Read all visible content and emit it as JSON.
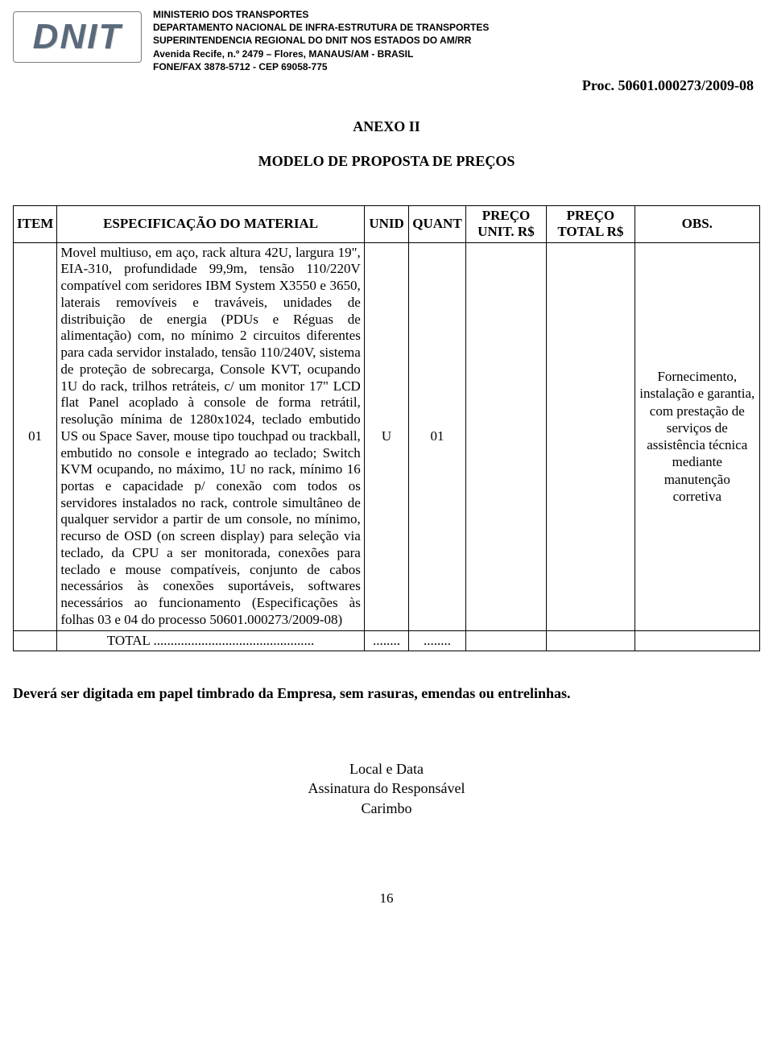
{
  "logo": {
    "text": "DNIT"
  },
  "letterhead": {
    "line1": "MINISTERIO DOS TRANSPORTES",
    "line2": "DEPARTAMENTO NACIONAL DE INFRA-ESTRUTURA DE TRANSPORTES",
    "line3": "SUPERINTENDENCIA REGIONAL DO DNIT NOS ESTADOS DO AM/RR",
    "line4": "Avenida Recife, n.º 2479 – Flores, MANAUS/AM - BRASIL",
    "line5": "FONE/FAX 3878-5712 - CEP 69058-775"
  },
  "proc_label": "Proc. 50601.000273/2009-08",
  "anexo_title": "ANEXO II",
  "modelo_title": "MODELO DE PROPOSTA DE PREÇOS",
  "table": {
    "columns": {
      "item": "ITEM",
      "spec": "ESPECIFICAÇÃO DO MATERIAL",
      "unid": "UNID",
      "quant": "QUANT",
      "preco_unit": "PREÇO UNIT. R$",
      "preco_total": "PREÇO TOTAL R$",
      "obs": "OBS."
    },
    "rows": [
      {
        "item": "01",
        "spec": "Movel multiuso, em aço, rack altura 42U, largura 19\", EIA-310, profundidade 99,9m, tensão 110/220V compatível com seridores IBM System X3550 e 3650, laterais removíveis e traváveis, unidades de distribuição de energia (PDUs e Réguas de alimentação) com, no mínimo 2 circuitos diferentes para cada servidor instalado, tensão 110/240V, sistema de proteção de sobrecarga, Console KVT, ocupando 1U do rack, trilhos retráteis, c/ um monitor 17\" LCD flat Panel acoplado à console de forma retrátil, resolução mínima de 1280x1024, teclado embutido US ou Space Saver, mouse tipo touchpad ou trackball, embutido no console e integrado ao teclado; Switch KVM ocupando, no máximo, 1U no rack, mínimo 16 portas e capacidade p/ conexão com todos os servidores instalados no rack, controle simultâneo de qualquer servidor a partir de um console, no mínimo, recurso de OSD (on screen display) para seleção via teclado, da CPU a ser monitorada, conexões para teclado e mouse compatíveis, conjunto de cabos necessários às conexões suportáveis, softwares necessários ao funcionamento (Especificações às folhas 03 e 04 do processo 50601.000273/2009-08)",
        "unid": "U",
        "quant": "01",
        "preco_unit": "",
        "preco_total": "",
        "obs": "Fornecimento, instalação e garantia, com prestação de serviços de assistência técnica mediante manutenção corretiva"
      }
    ],
    "total_row": {
      "label": "TOTAL ...............................................",
      "unid": "........",
      "quant": "........",
      "preco_unit": "",
      "preco_total": "",
      "obs": ""
    }
  },
  "footer_note": "Deverá ser digitada em papel timbrado da Empresa, sem rasuras, emendas ou entrelinhas.",
  "sign": {
    "line1": "Local e Data",
    "line2": "Assinatura do Responsável",
    "line3": "Carimbo"
  },
  "page_number": "16",
  "colors": {
    "text": "#000000",
    "border": "#000000",
    "logo_border": "#818181",
    "logo_text": "#5a6a7a",
    "background": "#ffffff"
  },
  "typography": {
    "body_family": "Times New Roman",
    "letterhead_family": "Arial",
    "body_size_pt": 13,
    "letterhead_size_pt": 9,
    "heading_size_pt": 14
  }
}
